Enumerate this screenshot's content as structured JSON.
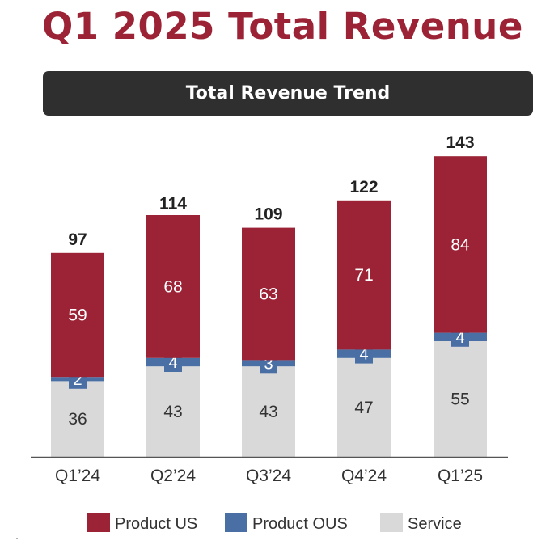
{
  "page": {
    "title": "Q1 2025 Total Revenue"
  },
  "chart_data": {
    "type": "bar",
    "stacked": true,
    "title": "Total Revenue Trend",
    "categories": [
      "Q1’24",
      "Q2’24",
      "Q3’24",
      "Q4’24",
      "Q1’25"
    ],
    "series": [
      {
        "name": "Service",
        "values": [
          36,
          43,
          43,
          47,
          55
        ],
        "color": "#d9d9d9",
        "label_color": "#333333"
      },
      {
        "name": "Product OUS",
        "values": [
          2,
          4,
          3,
          4,
          4
        ],
        "color": "#4a6fa5",
        "label_color": "#ffffff"
      },
      {
        "name": "Product US",
        "values": [
          59,
          68,
          63,
          71,
          84
        ],
        "color": "#9b2335",
        "label_color": "#ffffff"
      }
    ],
    "totals": [
      97,
      114,
      109,
      122,
      143
    ],
    "legend": [
      "Product US",
      "Product OUS",
      "Service"
    ],
    "legend_position": "bottom",
    "xlabel": "",
    "ylabel": "",
    "ylim": [
      0,
      145
    ]
  }
}
